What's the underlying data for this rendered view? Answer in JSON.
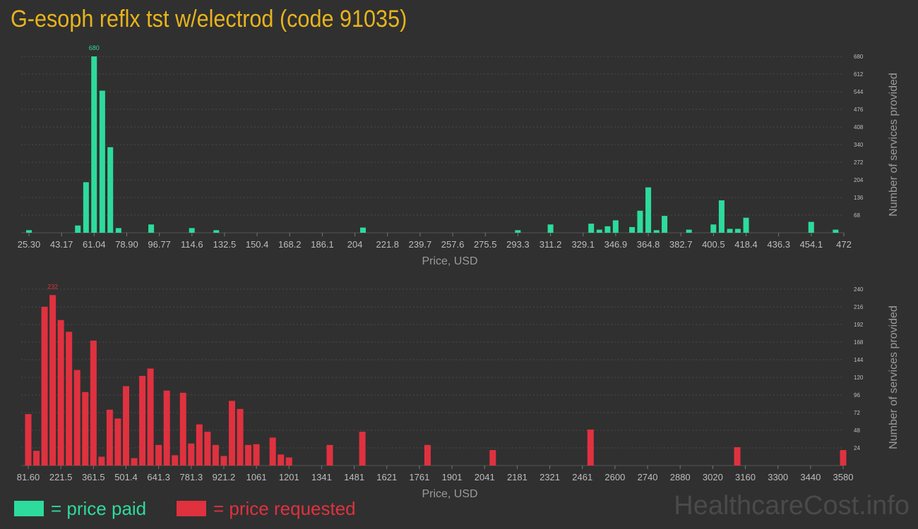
{
  "title": "G-esoph reflx tst w/electrod (code 91035)",
  "legend": {
    "paid_label": "= price paid",
    "requested_label": "= price requested",
    "paid_color": "#2ddb9c",
    "requested_color": "#e0313f"
  },
  "brand": "HealthcareCost.info",
  "chart_data": [
    {
      "type": "bar",
      "name": "price paid",
      "xlabel": "Price, USD",
      "ylabel": "Number of services provided",
      "x_ticks": [
        "25.30",
        "43.17",
        "61.04",
        "78.90",
        "96.77",
        "114.6",
        "132.5",
        "150.4",
        "168.2",
        "186.1",
        "204",
        "221.8",
        "239.7",
        "257.6",
        "275.5",
        "293.3",
        "311.2",
        "329.1",
        "346.9",
        "364.8",
        "382.7",
        "400.5",
        "418.4",
        "436.3",
        "454.1",
        "472"
      ],
      "xlim": [
        25.3,
        472
      ],
      "y_ticks": [
        "68",
        "136",
        "204",
        "272",
        "340",
        "408",
        "476",
        "544",
        "612",
        "680"
      ],
      "ylim": [
        0,
        680
      ],
      "max_label": "680",
      "color": "#2ddb9c",
      "bins": [
        [
          25.3,
          10
        ],
        [
          52.1,
          28
        ],
        [
          56.6,
          195
        ],
        [
          61.0,
          680
        ],
        [
          65.5,
          548
        ],
        [
          69.9,
          330
        ],
        [
          74.4,
          18
        ],
        [
          92.3,
          32
        ],
        [
          114.6,
          18
        ],
        [
          128.0,
          10
        ],
        [
          208.4,
          20
        ],
        [
          293.3,
          10
        ],
        [
          311.2,
          32
        ],
        [
          333.5,
          35
        ],
        [
          338.0,
          12
        ],
        [
          342.5,
          25
        ],
        [
          346.9,
          48
        ],
        [
          355.9,
          22
        ],
        [
          360.3,
          85
        ],
        [
          364.8,
          175
        ],
        [
          369.3,
          10
        ],
        [
          373.7,
          65
        ],
        [
          387.1,
          12
        ],
        [
          400.5,
          32
        ],
        [
          405.0,
          125
        ],
        [
          409.5,
          15
        ],
        [
          413.9,
          15
        ],
        [
          418.4,
          58
        ],
        [
          454.1,
          42
        ],
        [
          467.5,
          12
        ]
      ]
    },
    {
      "type": "bar",
      "name": "price requested",
      "xlabel": "Price, USD",
      "ylabel": "Number of services provided",
      "x_ticks": [
        "81.60",
        "221.5",
        "361.5",
        "501.4",
        "641.3",
        "781.3",
        "921.2",
        "1061",
        "1201",
        "1341",
        "1481",
        "1621",
        "1761",
        "1901",
        "2041",
        "2181",
        "2321",
        "2461",
        "2600",
        "2740",
        "2880",
        "3020",
        "3160",
        "3300",
        "3440",
        "3580"
      ],
      "xlim": [
        81.6,
        3580
      ],
      "y_ticks": [
        "24",
        "48",
        "72",
        "96",
        "120",
        "144",
        "168",
        "192",
        "216",
        "240"
      ],
      "ylim": [
        0,
        240
      ],
      "max_label": "232",
      "color": "#e0313f",
      "bins": [
        [
          81.6,
          70
        ],
        [
          116.6,
          20
        ],
        [
          151.6,
          216
        ],
        [
          186.5,
          232
        ],
        [
          221.5,
          198
        ],
        [
          256.5,
          182
        ],
        [
          291.5,
          130
        ],
        [
          326.5,
          100
        ],
        [
          361.5,
          170
        ],
        [
          396.5,
          12
        ],
        [
          431.4,
          76
        ],
        [
          466.4,
          64
        ],
        [
          501.4,
          108
        ],
        [
          536.4,
          10
        ],
        [
          571.4,
          122
        ],
        [
          606.3,
          132
        ],
        [
          641.3,
          28
        ],
        [
          676.3,
          102
        ],
        [
          711.3,
          14
        ],
        [
          746.3,
          99
        ],
        [
          781.3,
          30
        ],
        [
          816.2,
          56
        ],
        [
          851.2,
          46
        ],
        [
          886.2,
          28
        ],
        [
          921.2,
          13
        ],
        [
          956.2,
          88
        ],
        [
          991.2,
          77
        ],
        [
          1026.1,
          28
        ],
        [
          1061.1,
          29
        ],
        [
          1131.1,
          38
        ],
        [
          1166.0,
          15
        ],
        [
          1201.0,
          11
        ],
        [
          1376.0,
          28
        ],
        [
          1515.9,
          46
        ],
        [
          1795.8,
          28
        ],
        [
          2075.7,
          21
        ],
        [
          2495.6,
          49
        ],
        [
          3125.4,
          25
        ],
        [
          3580.0,
          21
        ]
      ]
    }
  ]
}
